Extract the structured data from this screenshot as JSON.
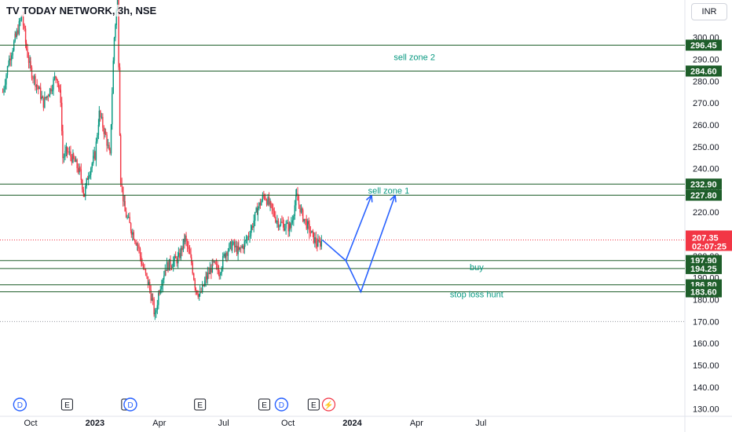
{
  "header": {
    "title": "TV TODAY NETWORK, 3h, NSE",
    "currency": "INR"
  },
  "colors": {
    "up": "#089981",
    "down": "#f23645",
    "level": "#1e5e2a",
    "arrow": "#2962ff",
    "current": "#f23645"
  },
  "chart_data": {
    "type": "candlestick",
    "y_ticks": [
      "130.00",
      "140.00",
      "150.00",
      "160.00",
      "170.00",
      "180.00",
      "190.00",
      "200.00",
      "210.00",
      "220.00",
      "230.00",
      "240.00",
      "250.00",
      "260.00",
      "270.00",
      "280.00",
      "290.00",
      "300.00"
    ],
    "x_ticks": [
      {
        "label": "Oct",
        "value": 0
      },
      {
        "label": "2023",
        "value": 3
      },
      {
        "label": "Apr",
        "value": 6
      },
      {
        "label": "Jul",
        "value": 9
      },
      {
        "label": "Oct",
        "value": 12
      },
      {
        "label": "2024",
        "value": 15
      },
      {
        "label": "Apr",
        "value": 18
      },
      {
        "label": "Jul",
        "value": 21
      }
    ],
    "ylim": [
      130,
      321
    ],
    "xlim": [
      -1.3,
      23.6
    ],
    "price_path": [
      [
        -1.3,
        275
      ],
      [
        -1.0,
        290
      ],
      [
        -0.7,
        300
      ],
      [
        -0.4,
        310
      ],
      [
        -0.2,
        295
      ],
      [
        0.0,
        285
      ],
      [
        0.3,
        278
      ],
      [
        0.6,
        270
      ],
      [
        0.9,
        276
      ],
      [
        1.2,
        283
      ],
      [
        1.4,
        272
      ],
      [
        1.5,
        245
      ],
      [
        1.7,
        248
      ],
      [
        2.0,
        244
      ],
      [
        2.3,
        238
      ],
      [
        2.5,
        228
      ],
      [
        2.7,
        238
      ],
      [
        3.0,
        246
      ],
      [
        3.2,
        265
      ],
      [
        3.5,
        255
      ],
      [
        3.7,
        245
      ],
      [
        3.8,
        275
      ],
      [
        3.9,
        300
      ],
      [
        4.0,
        312
      ],
      [
        4.05,
        320
      ],
      [
        4.2,
        235
      ],
      [
        4.4,
        220
      ],
      [
        4.7,
        212
      ],
      [
        5.0,
        205
      ],
      [
        5.2,
        196
      ],
      [
        5.5,
        187
      ],
      [
        5.7,
        178
      ],
      [
        5.8,
        172
      ],
      [
        6.0,
        185
      ],
      [
        6.3,
        195
      ],
      [
        6.6,
        197
      ],
      [
        6.9,
        199
      ],
      [
        7.2,
        208
      ],
      [
        7.5,
        197
      ],
      [
        7.7,
        185
      ],
      [
        7.9,
        182
      ],
      [
        8.2,
        190
      ],
      [
        8.5,
        196
      ],
      [
        8.8,
        193
      ],
      [
        9.1,
        202
      ],
      [
        9.4,
        205
      ],
      [
        9.7,
        202
      ],
      [
        10.0,
        206
      ],
      [
        10.3,
        213
      ],
      [
        10.6,
        222
      ],
      [
        10.9,
        228
      ],
      [
        11.2,
        222
      ],
      [
        11.5,
        216
      ],
      [
        11.8,
        214
      ],
      [
        12.1,
        213
      ],
      [
        12.4,
        227
      ],
      [
        12.7,
        218
      ],
      [
        13.0,
        212
      ],
      [
        13.2,
        208
      ],
      [
        13.4,
        205
      ],
      [
        13.6,
        207
      ]
    ],
    "levels": [
      296.45,
      284.6,
      232.9,
      227.8,
      197.9,
      194.25,
      186.8,
      183.6
    ],
    "dotted_levels": [
      207.35,
      170.0
    ],
    "current_price": {
      "value": 207.35,
      "label": "207.35",
      "countdown": "02:07:25"
    },
    "projection_arrows": [
      [
        [
          13.6,
          207.35
        ],
        [
          14.7,
          197.9
        ],
        [
          15.9,
          227.8
        ]
      ],
      [
        [
          14.7,
          197.9
        ],
        [
          15.4,
          183.6
        ],
        [
          17.0,
          227.8
        ]
      ]
    ],
    "annotations": [
      {
        "text": "sell zone 2",
        "x": 17.9,
        "y": 291
      },
      {
        "text": "sell zone 1",
        "x": 16.7,
        "y": 230
      },
      {
        "text": "buy",
        "x": 20.8,
        "y": 195
      },
      {
        "text": "stop loss hunt",
        "x": 20.8,
        "y": 182.5
      }
    ],
    "events": [
      {
        "label": "D",
        "x": -0.5,
        "kind": "dividend"
      },
      {
        "label": "E",
        "x": 1.7,
        "kind": "earnings"
      },
      {
        "label": "E",
        "x": 4.5,
        "kind": "earnings"
      },
      {
        "label": "D",
        "x": 4.65,
        "kind": "dividend"
      },
      {
        "label": "E",
        "x": 7.9,
        "kind": "earnings"
      },
      {
        "label": "E",
        "x": 10.9,
        "kind": "earnings"
      },
      {
        "label": "D",
        "x": 11.7,
        "kind": "dividend"
      },
      {
        "label": "E",
        "x": 13.2,
        "kind": "earnings"
      },
      {
        "label": "⚡",
        "x": 13.9,
        "kind": "split"
      }
    ]
  }
}
